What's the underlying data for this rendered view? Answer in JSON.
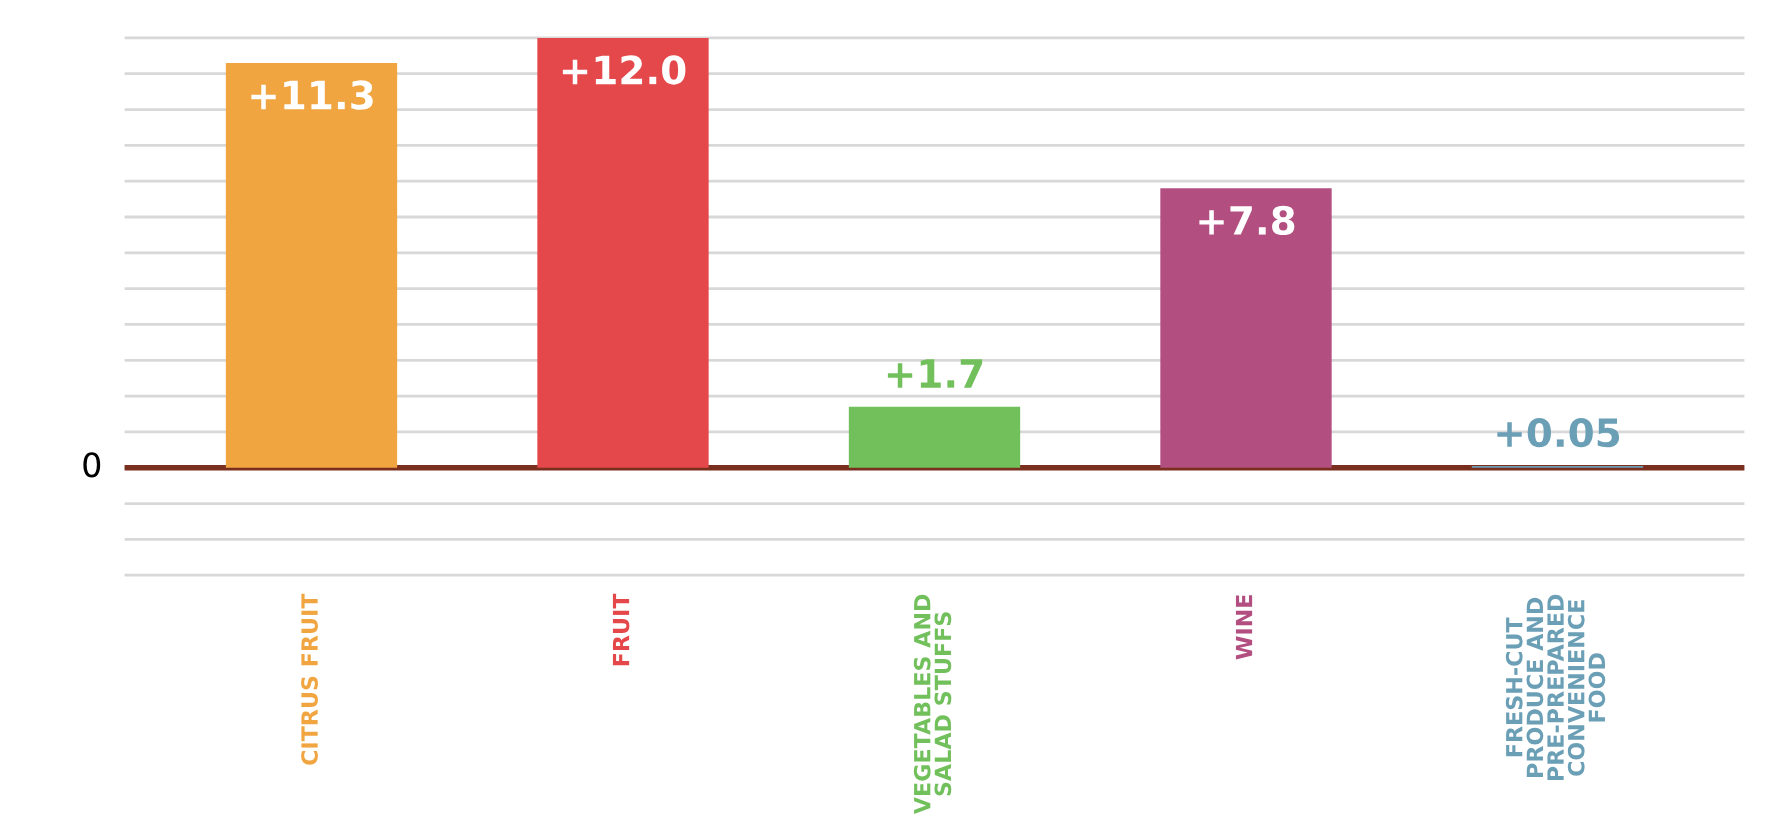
{
  "chart_data": {
    "type": "bar",
    "categories": [
      "CITRUS FRUIT",
      "FRUIT",
      "VEGETABLES AND\nSALAD STUFFS",
      "WINE",
      "FRESH-CUT\nPRODUCE AND\nPRE-PREPARED\nCONVENIENCE\nFOOD"
    ],
    "values": [
      11.3,
      12.0,
      1.7,
      7.8,
      0.05
    ],
    "colors": [
      "#f0a540",
      "#e5484b",
      "#72c05c",
      "#b24e80",
      "#6b9fb6"
    ],
    "value_labels": [
      "+11.3",
      "+12.0",
      "+1.7",
      "+7.8",
      "+0.05"
    ],
    "annotations": [
      "0"
    ],
    "grid": "y",
    "ref_lines": [
      {
        "axis": "y",
        "value": 0,
        "label": null,
        "color": "#7a2e1e"
      }
    ]
  }
}
